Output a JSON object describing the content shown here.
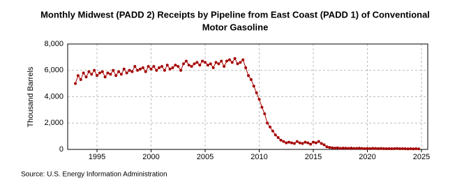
{
  "chart_data": {
    "type": "line",
    "title": "Monthly Midwest (PADD 2) Receipts by Pipeline from East Coast (PADD 1) of Conventional",
    "title_line2": "Motor Gasoline",
    "ylabel": "Thousand Barrels",
    "source": "Source: U.S. Energy Information Administration",
    "color": "#a40000",
    "grid": true,
    "xlim": [
      1992.29,
      2025.58
    ],
    "ylim": [
      0,
      8000
    ],
    "xticks": [
      1995,
      2000,
      2005,
      2010,
      2015,
      2020,
      2025
    ],
    "yticks": [
      {
        "value": 0,
        "label": "0"
      },
      {
        "value": 2000,
        "label": "2,000"
      },
      {
        "value": 4000,
        "label": "4,000"
      },
      {
        "value": 6000,
        "label": "6,000"
      },
      {
        "value": 8000,
        "label": "8,000"
      }
    ],
    "x": [
      1993,
      1993.25,
      1993.5,
      1993.75,
      1994,
      1994.25,
      1994.5,
      1994.75,
      1995,
      1995.25,
      1995.5,
      1995.75,
      1996,
      1996.25,
      1996.5,
      1996.75,
      1997,
      1997.25,
      1997.5,
      1997.75,
      1998,
      1998.25,
      1998.5,
      1998.75,
      1999,
      1999.25,
      1999.5,
      1999.75,
      2000,
      2000.25,
      2000.5,
      2000.75,
      2001,
      2001.25,
      2001.5,
      2001.75,
      2002,
      2002.25,
      2002.5,
      2002.75,
      2003,
      2003.25,
      2003.5,
      2003.75,
      2004,
      2004.25,
      2004.5,
      2004.75,
      2005,
      2005.25,
      2005.5,
      2005.75,
      2006,
      2006.25,
      2006.5,
      2006.75,
      2007,
      2007.25,
      2007.5,
      2007.75,
      2008,
      2008.25,
      2008.5,
      2008.75,
      2009,
      2009.25,
      2009.5,
      2009.75,
      2010,
      2010.25,
      2010.5,
      2010.75,
      2011,
      2011.25,
      2011.5,
      2011.75,
      2012,
      2012.25,
      2012.5,
      2012.75,
      2013,
      2013.25,
      2013.5,
      2013.75,
      2014,
      2014.25,
      2014.5,
      2014.75,
      2015,
      2015.25,
      2015.5,
      2015.75,
      2016,
      2016.25,
      2016.5,
      2016.75,
      2017,
      2017.25,
      2017.5,
      2017.75,
      2018,
      2018.25,
      2018.5,
      2018.75,
      2019,
      2019.25,
      2019.5,
      2019.75,
      2020,
      2020.25,
      2020.5,
      2020.75,
      2021,
      2021.25,
      2021.5,
      2021.75,
      2022,
      2022.25,
      2022.5,
      2022.75,
      2023,
      2023.25,
      2023.5,
      2023.75,
      2024,
      2024.25,
      2024.5,
      2024.75
    ],
    "values": [
      5000,
      5600,
      5300,
      5800,
      5500,
      5900,
      5700,
      6000,
      5600,
      5800,
      5900,
      5500,
      5800,
      5700,
      6000,
      5600,
      5900,
      5700,
      6100,
      5800,
      6000,
      5900,
      6300,
      6000,
      6100,
      6200,
      5900,
      6300,
      6100,
      6300,
      6000,
      6200,
      6300,
      6000,
      6400,
      6100,
      6200,
      6400,
      6300,
      6000,
      6500,
      6700,
      6400,
      6300,
      6500,
      6600,
      6400,
      6700,
      6600,
      6400,
      6500,
      6200,
      6600,
      6500,
      6700,
      6300,
      6700,
      6800,
      6600,
      6900,
      6500,
      6600,
      6800,
      6200,
      5600,
      5300,
      4800,
      4300,
      3800,
      3200,
      2700,
      2000,
      1700,
      1400,
      1100,
      900,
      700,
      600,
      500,
      550,
      500,
      450,
      600,
      500,
      450,
      550,
      500,
      400,
      550,
      500,
      600,
      450,
      350,
      200,
      150,
      120,
      100,
      120,
      80,
      100,
      90,
      80,
      100,
      70,
      80,
      90,
      70,
      60,
      70,
      60,
      80,
      70,
      60,
      70,
      60,
      50,
      60,
      50,
      60,
      70,
      50,
      60,
      50,
      40,
      50,
      40,
      50,
      40
    ]
  }
}
